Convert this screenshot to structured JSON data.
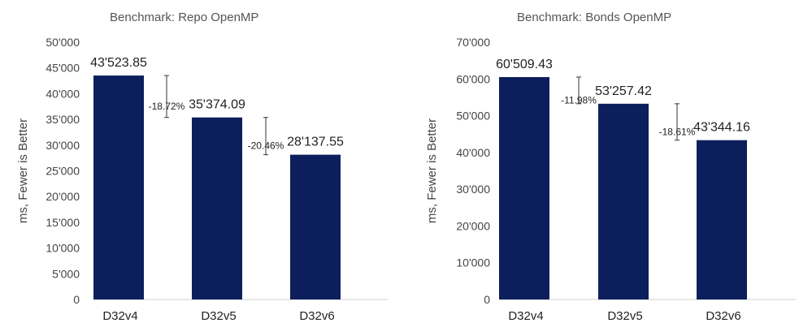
{
  "chart_data": [
    {
      "type": "bar",
      "title": "Benchmark: Repo OpenMP",
      "xlabel": "",
      "ylabel": "ms, Fewer is Better",
      "categories": [
        "D32v4",
        "D32v5",
        "D32v6"
      ],
      "values": [
        43523.85,
        35374.09,
        28137.55
      ],
      "value_labels": [
        "43'523.85",
        "35'374.09",
        "28'137.55"
      ],
      "ylim": [
        0,
        50000
      ],
      "yticks": [
        0,
        5000,
        10000,
        15000,
        20000,
        25000,
        30000,
        35000,
        40000,
        45000,
        50000
      ],
      "ytick_labels": [
        "0",
        "5'000",
        "10'000",
        "15'000",
        "20'000",
        "25'000",
        "30'000",
        "35'000",
        "40'000",
        "45'000",
        "50'000"
      ],
      "grid": false,
      "bar_color": "#0c1f5c",
      "changes": [
        "-18.72%",
        "-20.46%"
      ]
    },
    {
      "type": "bar",
      "title": "Benchmark: Bonds OpenMP",
      "xlabel": "",
      "ylabel": "ms, Fewer is Better",
      "categories": [
        "D32v4",
        "D32v5",
        "D32v6"
      ],
      "values": [
        60509.43,
        53257.42,
        43344.16
      ],
      "value_labels": [
        "60'509.43",
        "53'257.42",
        "43'344.16"
      ],
      "ylim": [
        0,
        70000
      ],
      "yticks": [
        0,
        10000,
        20000,
        30000,
        40000,
        50000,
        60000,
        70000
      ],
      "ytick_labels": [
        "0",
        "10'000",
        "20'000",
        "30'000",
        "40'000",
        "50'000",
        "60'000",
        "70'000"
      ],
      "grid": false,
      "bar_color": "#0c1f5c",
      "changes": [
        "-11.98%",
        "-18.61%"
      ]
    }
  ]
}
